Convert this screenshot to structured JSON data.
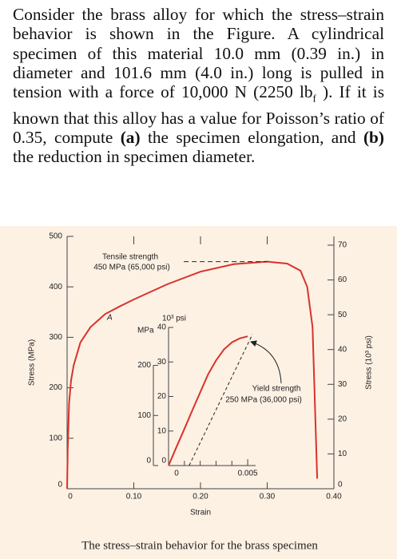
{
  "problem": {
    "segments": [
      "Consider the brass alloy for which the stress–strain behavior is shown in the Figure. A cylindrical specimen of this material 10.0 mm (0.39 in.) in diameter and 101.6 mm (4.0 in.) long is pulled in tension with a force of 10,000 N (2250 lb",
      "f",
      " ). If it is known that this alloy has a value for Poisson’s ratio of 0.35, compute ",
      "(a)",
      " the specimen elongation, and ",
      "(b)",
      " the reduction in specimen diameter."
    ]
  },
  "caption": "The stress–strain behavior for the brass specimen",
  "chart_data": [
    {
      "type": "line",
      "xlabel": "Strain",
      "ylabel": "Stress (MPa)",
      "y2label": "Stress (10³ psi)",
      "x": [
        0,
        0.001,
        0.003,
        0.006,
        0.01,
        0.02,
        0.035,
        0.057,
        0.08,
        0.1,
        0.15,
        0.2,
        0.25,
        0.3,
        0.33,
        0.35,
        0.36,
        0.368,
        0.375
      ],
      "series": [
        {
          "color": "#d9322a",
          "values": [
            0,
            80,
            170,
            215,
            245,
            290,
            320,
            346,
            362,
            375,
            405,
            430,
            445,
            450,
            446,
            432,
            400,
            320,
            20
          ]
        }
      ],
      "xlim": [
        0,
        0.4
      ],
      "xticks": [
        0,
        {
          "value": 0.1,
          "label": "0.10"
        },
        {
          "value": 0.2,
          "label": "0.20"
        },
        {
          "value": 0.3,
          "label": "0.30"
        },
        {
          "value": 0.4,
          "label": "0.40"
        }
      ],
      "ylim": [
        0,
        500
      ],
      "yticks": [
        0,
        100,
        200,
        300,
        400,
        500
      ],
      "y2lim": [
        0,
        72.52
      ],
      "y2ticks": [
        0,
        10,
        20,
        30,
        40,
        50,
        60,
        70
      ],
      "annotations": [
        "Tensile strength",
        "450 MPa (65,000 psi)",
        "A"
      ],
      "tensile_strength": 450
    },
    {
      "type": "line",
      "ylabel": "MPa",
      "y2label": "10³ psi",
      "series": [
        {
          "color": "#d9322a",
          "x": [
            0,
            0.0005,
            0.001,
            0.0015,
            0.002,
            0.0025,
            0.003,
            0.0035,
            0.004,
            0.0045,
            0.005
          ],
          "values": [
            0,
            37,
            73,
            110,
            146,
            182,
            210,
            232,
            246,
            254,
            258
          ]
        },
        {
          "color": "#222222",
          "dashed": true,
          "x": [
            0.0013,
            0.0053
          ],
          "values": [
            0,
            262
          ]
        }
      ],
      "xlim": [
        0,
        0.0055
      ],
      "xticks": [
        0,
        0.005
      ],
      "minor_xticks": [
        0.001,
        0.002,
        0.003,
        0.004
      ],
      "ylim": [
        0,
        275.8
      ],
      "yticks": [
        0,
        100,
        200
      ],
      "y2lim": [
        0,
        40
      ],
      "y2ticks": [
        0,
        10,
        20,
        30,
        40
      ],
      "annotations": [
        "Yield strength",
        "250 MPa (36,000 psi)"
      ]
    }
  ]
}
